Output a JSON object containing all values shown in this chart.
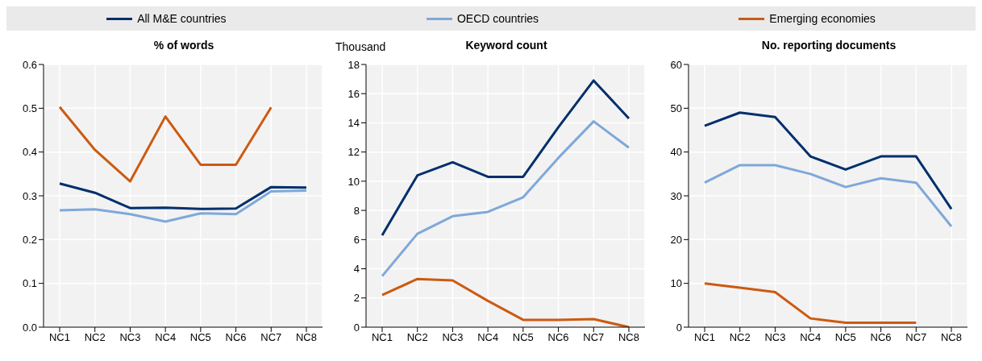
{
  "chart_data": [
    {
      "type": "line",
      "title": "% of words",
      "categories": [
        "NC1",
        "NC2",
        "NC3",
        "NC4",
        "NC5",
        "NC6",
        "NC7",
        "NC8"
      ],
      "ylim": [
        0,
        0.6
      ],
      "yticks": [
        {
          "value": 0,
          "label": "0.0"
        },
        0.1,
        0.2,
        0.3,
        0.4,
        0.5,
        0.6
      ],
      "grid": true,
      "legend": "top",
      "series": [
        {
          "name": "All M&E countries",
          "color": "#002f6c",
          "values": [
            0.328,
            0.307,
            0.272,
            0.273,
            0.27,
            0.271,
            0.32,
            0.319
          ]
        },
        {
          "name": "OECD countries",
          "color": "#7fa8d9",
          "values": [
            0.267,
            0.269,
            0.258,
            0.241,
            0.26,
            0.258,
            0.31,
            0.312
          ]
        },
        {
          "name": "Emerging economies",
          "color": "#cc5a11",
          "values": [
            0.503,
            0.405,
            0.333,
            0.481,
            0.371,
            0.371,
            0.502,
            null
          ]
        }
      ]
    },
    {
      "type": "line",
      "title": "Keyword count",
      "ylabel": "Thousand",
      "categories": [
        "NC1",
        "NC2",
        "NC3",
        "NC4",
        "NC5",
        "NC6",
        "NC7",
        "NC8"
      ],
      "ylim": [
        0,
        18
      ],
      "yticks": [
        0,
        2,
        4,
        6,
        8,
        10,
        12,
        14,
        16,
        18
      ],
      "grid": true,
      "series": [
        {
          "color": "#002f6c",
          "values": [
            6.3,
            10.4,
            11.3,
            10.3,
            10.3,
            13.7,
            16.9,
            14.3
          ]
        },
        {
          "color": "#7fa8d9",
          "values": [
            3.5,
            6.4,
            7.6,
            7.9,
            8.9,
            11.6,
            14.1,
            12.3
          ]
        },
        {
          "color": "#cc5a11",
          "values": [
            2.2,
            3.3,
            3.2,
            1.8,
            0.5,
            0.5,
            0.55,
            0
          ]
        }
      ]
    },
    {
      "type": "line",
      "title": "No. reporting documents",
      "categories": [
        "NC1",
        "NC2",
        "NC3",
        "NC4",
        "NC5",
        "NC6",
        "NC7",
        "NC8"
      ],
      "ylim": [
        0,
        60
      ],
      "yticks": [
        0,
        10,
        20,
        30,
        40,
        50,
        60
      ],
      "grid": true,
      "series": [
        {
          "color": "#002f6c",
          "values": [
            46,
            49,
            48,
            39,
            36,
            39,
            39,
            27
          ]
        },
        {
          "color": "#7fa8d9",
          "values": [
            33,
            37,
            37,
            35,
            32,
            34,
            33,
            23
          ]
        },
        {
          "color": "#cc5a11",
          "values": [
            10,
            9,
            8,
            2,
            1,
            1,
            1,
            null
          ]
        }
      ]
    }
  ]
}
